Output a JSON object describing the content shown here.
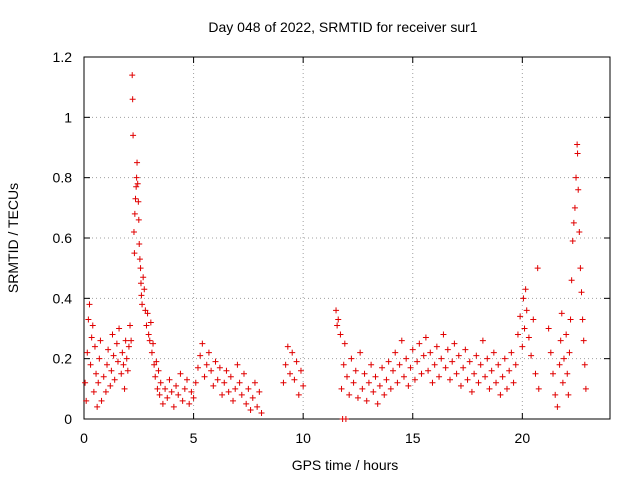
{
  "chart_data": {
    "type": "scatter",
    "title": "Day 048 of 2022, SRMTID for receiver sur1",
    "xlabel": "GPS time / hours",
    "ylabel": "SRMTID / TECUs",
    "xlim": [
      0,
      24
    ],
    "ylim": [
      0,
      1.2
    ],
    "x_ticks": [
      0,
      5,
      10,
      15,
      20
    ],
    "x_tick_labels": [
      "0",
      "5",
      "10",
      "15",
      "20"
    ],
    "y_ticks": [
      0,
      0.2,
      0.4,
      0.6,
      0.8,
      1.0,
      1.2
    ],
    "y_tick_labels": [
      "0",
      "0.2",
      "0.4",
      "0.6",
      "0.8",
      "1",
      "1.2"
    ],
    "grid": true,
    "marker": "+",
    "series": [
      {
        "name": "sur1",
        "color": "#e00000",
        "points": [
          [
            0.05,
            0.12
          ],
          [
            0.1,
            0.06
          ],
          [
            0.15,
            0.22
          ],
          [
            0.2,
            0.33
          ],
          [
            0.25,
            0.38
          ],
          [
            0.3,
            0.18
          ],
          [
            0.35,
            0.27
          ],
          [
            0.4,
            0.31
          ],
          [
            0.45,
            0.09
          ],
          [
            0.5,
            0.24
          ],
          [
            0.55,
            0.15
          ],
          [
            0.6,
            0.04
          ],
          [
            0.65,
            0.12
          ],
          [
            0.7,
            0.2
          ],
          [
            0.75,
            0.26
          ],
          [
            0.8,
            0.06
          ],
          [
            0.9,
            0.14
          ],
          [
            1.0,
            0.09
          ],
          [
            1.05,
            0.18
          ],
          [
            1.1,
            0.23
          ],
          [
            1.2,
            0.11
          ],
          [
            1.25,
            0.16
          ],
          [
            1.3,
            0.28
          ],
          [
            1.35,
            0.21
          ],
          [
            1.4,
            0.13
          ],
          [
            1.5,
            0.25
          ],
          [
            1.55,
            0.19
          ],
          [
            1.6,
            0.3
          ],
          [
            1.7,
            0.15
          ],
          [
            1.75,
            0.22
          ],
          [
            1.8,
            0.18
          ],
          [
            1.85,
            0.1
          ],
          [
            1.9,
            0.26
          ],
          [
            1.95,
            0.2
          ],
          [
            2.0,
            0.16
          ],
          [
            2.05,
            0.24
          ],
          [
            2.1,
            0.31
          ],
          [
            2.15,
            0.26
          ],
          [
            2.2,
            1.14
          ],
          [
            2.22,
            1.06
          ],
          [
            2.24,
            0.94
          ],
          [
            2.28,
            0.62
          ],
          [
            2.3,
            0.55
          ],
          [
            2.32,
            0.68
          ],
          [
            2.35,
            0.73
          ],
          [
            2.38,
            0.77
          ],
          [
            2.4,
            0.8
          ],
          [
            2.42,
            0.85
          ],
          [
            2.45,
            0.78
          ],
          [
            2.48,
            0.72
          ],
          [
            2.5,
            0.66
          ],
          [
            2.52,
            0.58
          ],
          [
            2.55,
            0.53
          ],
          [
            2.58,
            0.5
          ],
          [
            2.6,
            0.45
          ],
          [
            2.62,
            0.41
          ],
          [
            2.65,
            0.38
          ],
          [
            2.7,
            0.47
          ],
          [
            2.75,
            0.43
          ],
          [
            2.8,
            0.36
          ],
          [
            2.85,
            0.31
          ],
          [
            2.9,
            0.35
          ],
          [
            2.95,
            0.28
          ],
          [
            3.0,
            0.26
          ],
          [
            3.05,
            0.32
          ],
          [
            3.1,
            0.22
          ],
          [
            3.15,
            0.25
          ],
          [
            3.2,
            0.18
          ],
          [
            3.25,
            0.14
          ],
          [
            3.3,
            0.19
          ],
          [
            3.35,
            0.1
          ],
          [
            3.4,
            0.16
          ],
          [
            3.45,
            0.08
          ],
          [
            3.5,
            0.12
          ],
          [
            3.6,
            0.05
          ],
          [
            3.7,
            0.1
          ],
          [
            3.8,
            0.07
          ],
          [
            3.9,
            0.13
          ],
          [
            4.0,
            0.09
          ],
          [
            4.1,
            0.04
          ],
          [
            4.2,
            0.11
          ],
          [
            4.3,
            0.08
          ],
          [
            4.4,
            0.15
          ],
          [
            4.5,
            0.06
          ],
          [
            4.6,
            0.1
          ],
          [
            4.7,
            0.13
          ],
          [
            4.8,
            0.05
          ],
          [
            4.9,
            0.09
          ],
          [
            5.0,
            0.07
          ],
          [
            5.1,
            0.12
          ],
          [
            5.2,
            0.17
          ],
          [
            5.3,
            0.21
          ],
          [
            5.4,
            0.25
          ],
          [
            5.5,
            0.14
          ],
          [
            5.6,
            0.18
          ],
          [
            5.7,
            0.22
          ],
          [
            5.8,
            0.16
          ],
          [
            5.9,
            0.11
          ],
          [
            6.0,
            0.19
          ],
          [
            6.1,
            0.13
          ],
          [
            6.2,
            0.17
          ],
          [
            6.3,
            0.08
          ],
          [
            6.4,
            0.12
          ],
          [
            6.5,
            0.16
          ],
          [
            6.6,
            0.09
          ],
          [
            6.7,
            0.14
          ],
          [
            6.8,
            0.06
          ],
          [
            6.9,
            0.1
          ],
          [
            7.0,
            0.18
          ],
          [
            7.1,
            0.12
          ],
          [
            7.2,
            0.08
          ],
          [
            7.3,
            0.15
          ],
          [
            7.4,
            0.05
          ],
          [
            7.5,
            0.1
          ],
          [
            7.6,
            0.03
          ],
          [
            7.7,
            0.07
          ],
          [
            7.8,
            0.12
          ],
          [
            7.9,
            0.04
          ],
          [
            8.0,
            0.09
          ],
          [
            8.1,
            0.02
          ],
          [
            9.1,
            0.12
          ],
          [
            9.2,
            0.18
          ],
          [
            9.3,
            0.24
          ],
          [
            9.4,
            0.15
          ],
          [
            9.5,
            0.22
          ],
          [
            9.6,
            0.13
          ],
          [
            9.7,
            0.19
          ],
          [
            9.8,
            0.08
          ],
          [
            9.9,
            0.16
          ],
          [
            10.0,
            0.11
          ],
          [
            11.5,
            0.36
          ],
          [
            11.55,
            0.31
          ],
          [
            11.6,
            0.33
          ],
          [
            11.7,
            0.28
          ],
          [
            11.75,
            0.1
          ],
          [
            11.8,
            0.0
          ],
          [
            11.85,
            0.18
          ],
          [
            11.9,
            0.25
          ],
          [
            11.95,
            0.0
          ],
          [
            12.0,
            0.14
          ],
          [
            12.1,
            0.08
          ],
          [
            12.2,
            0.2
          ],
          [
            12.3,
            0.12
          ],
          [
            12.4,
            0.16
          ],
          [
            12.5,
            0.07
          ],
          [
            12.6,
            0.22
          ],
          [
            12.7,
            0.1
          ],
          [
            12.8,
            0.15
          ],
          [
            12.9,
            0.06
          ],
          [
            13.0,
            0.12
          ],
          [
            13.1,
            0.18
          ],
          [
            13.2,
            0.09
          ],
          [
            13.3,
            0.14
          ],
          [
            13.4,
            0.05
          ],
          [
            13.5,
            0.11
          ],
          [
            13.6,
            0.17
          ],
          [
            13.7,
            0.08
          ],
          [
            13.8,
            0.13
          ],
          [
            13.9,
            0.19
          ],
          [
            14.0,
            0.1
          ],
          [
            14.1,
            0.16
          ],
          [
            14.2,
            0.22
          ],
          [
            14.3,
            0.12
          ],
          [
            14.4,
            0.18
          ],
          [
            14.5,
            0.26
          ],
          [
            14.6,
            0.14
          ],
          [
            14.7,
            0.2
          ],
          [
            14.8,
            0.11
          ],
          [
            14.9,
            0.17
          ],
          [
            15.0,
            0.23
          ],
          [
            15.1,
            0.13
          ],
          [
            15.2,
            0.19
          ],
          [
            15.3,
            0.25
          ],
          [
            15.4,
            0.15
          ],
          [
            15.5,
            0.21
          ],
          [
            15.6,
            0.27
          ],
          [
            15.7,
            0.16
          ],
          [
            15.8,
            0.22
          ],
          [
            15.9,
            0.12
          ],
          [
            16.0,
            0.18
          ],
          [
            16.1,
            0.24
          ],
          [
            16.2,
            0.14
          ],
          [
            16.3,
            0.2
          ],
          [
            16.4,
            0.28
          ],
          [
            16.5,
            0.17
          ],
          [
            16.6,
            0.23
          ],
          [
            16.7,
            0.13
          ],
          [
            16.8,
            0.19
          ],
          [
            16.9,
            0.25
          ],
          [
            17.0,
            0.15
          ],
          [
            17.1,
            0.21
          ],
          [
            17.2,
            0.11
          ],
          [
            17.3,
            0.17
          ],
          [
            17.4,
            0.23
          ],
          [
            17.5,
            0.13
          ],
          [
            17.6,
            0.19
          ],
          [
            17.7,
            0.09
          ],
          [
            17.8,
            0.15
          ],
          [
            17.9,
            0.21
          ],
          [
            18.0,
            0.12
          ],
          [
            18.1,
            0.18
          ],
          [
            18.2,
            0.26
          ],
          [
            18.3,
            0.14
          ],
          [
            18.4,
            0.2
          ],
          [
            18.5,
            0.1
          ],
          [
            18.6,
            0.16
          ],
          [
            18.7,
            0.22
          ],
          [
            18.8,
            0.12
          ],
          [
            18.9,
            0.18
          ],
          [
            19.0,
            0.08
          ],
          [
            19.1,
            0.14
          ],
          [
            19.2,
            0.2
          ],
          [
            19.3,
            0.1
          ],
          [
            19.4,
            0.16
          ],
          [
            19.5,
            0.22
          ],
          [
            19.6,
            0.12
          ],
          [
            19.7,
            0.18
          ],
          [
            19.8,
            0.28
          ],
          [
            19.9,
            0.34
          ],
          [
            20.0,
            0.24
          ],
          [
            20.05,
            0.4
          ],
          [
            20.1,
            0.3
          ],
          [
            20.15,
            0.43
          ],
          [
            20.2,
            0.36
          ],
          [
            20.3,
            0.27
          ],
          [
            20.4,
            0.21
          ],
          [
            20.5,
            0.33
          ],
          [
            20.6,
            0.15
          ],
          [
            20.7,
            0.5
          ],
          [
            20.75,
            0.1
          ],
          [
            21.2,
            0.3
          ],
          [
            21.3,
            0.22
          ],
          [
            21.4,
            0.15
          ],
          [
            21.5,
            0.08
          ],
          [
            21.6,
            0.04
          ],
          [
            21.7,
            0.18
          ],
          [
            21.75,
            0.26
          ],
          [
            21.8,
            0.35
          ],
          [
            21.85,
            0.12
          ],
          [
            21.9,
            0.2
          ],
          [
            22.0,
            0.28
          ],
          [
            22.05,
            0.15
          ],
          [
            22.1,
            0.08
          ],
          [
            22.15,
            0.22
          ],
          [
            22.2,
            0.33
          ],
          [
            22.25,
            0.46
          ],
          [
            22.3,
            0.59
          ],
          [
            22.35,
            0.65
          ],
          [
            22.4,
            0.7
          ],
          [
            22.45,
            0.8
          ],
          [
            22.5,
            0.91
          ],
          [
            22.52,
            0.88
          ],
          [
            22.55,
            0.76
          ],
          [
            22.6,
            0.62
          ],
          [
            22.65,
            0.5
          ],
          [
            22.7,
            0.42
          ],
          [
            22.75,
            0.33
          ],
          [
            22.8,
            0.26
          ],
          [
            22.85,
            0.18
          ],
          [
            22.9,
            0.1
          ]
        ]
      }
    ]
  }
}
